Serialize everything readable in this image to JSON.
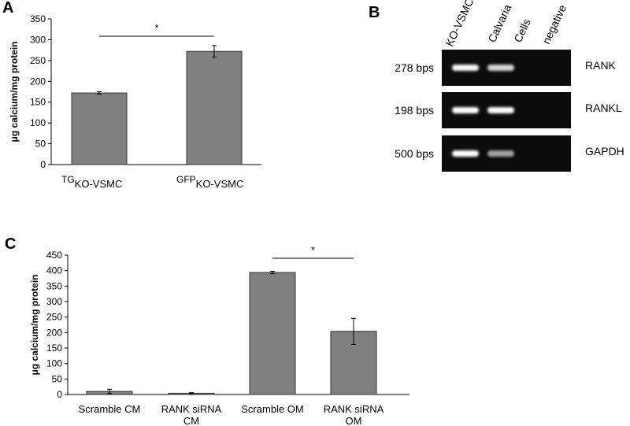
{
  "figure": {
    "panel_a_letter": "A",
    "panel_b_letter": "B",
    "panel_c_letter": "C"
  },
  "chart_data": [
    {
      "type": "bar",
      "panel": "A",
      "categories": [
        {
          "main": "TG",
          "sub": "KO-VSMC"
        },
        {
          "main": "GFP",
          "sub": "KO-VSMC"
        }
      ],
      "values": [
        172,
        272
      ],
      "errors": [
        3,
        14
      ],
      "bar_color": "#808080",
      "ylabel": "μg calcium/mg protein",
      "ylim": [
        0,
        350
      ],
      "yticks": [
        0,
        50,
        100,
        150,
        200,
        250,
        300,
        350
      ],
      "grid": false,
      "significance": {
        "between": [
          0,
          1
        ],
        "label": "*"
      }
    },
    {
      "type": "table",
      "panel": "B",
      "column_labels": [
        "KO-VSMC",
        "Calvaria Cells",
        "negative"
      ],
      "rows": [
        {
          "size": "278 bps",
          "gene": "RANK",
          "band_intensity": [
            0.95,
            0.7,
            0
          ]
        },
        {
          "size": "198 bps",
          "gene": "RANKL",
          "band_intensity": [
            1.0,
            1.0,
            0
          ]
        },
        {
          "size": "500 bps",
          "gene": "GAPDH",
          "band_intensity": [
            1.0,
            0.5,
            0
          ]
        }
      ]
    },
    {
      "type": "bar",
      "panel": "C",
      "categories": [
        {
          "line1": "Scramble CM",
          "line2": ""
        },
        {
          "line1": "RANK siRNA",
          "line2": "CM"
        },
        {
          "line1": "Scramble OM",
          "line2": ""
        },
        {
          "line1": "RANK siRNA",
          "line2": "OM"
        }
      ],
      "values": [
        10,
        4,
        394,
        204
      ],
      "errors": [
        7,
        2,
        4,
        42
      ],
      "bar_color": "#808080",
      "ylabel": "μg calcium/mg protein",
      "ylim": [
        0,
        450
      ],
      "yticks": [
        0,
        50,
        100,
        150,
        200,
        250,
        300,
        350,
        400,
        450
      ],
      "grid": false,
      "significance": {
        "between": [
          2,
          3
        ],
        "label": "*"
      }
    }
  ]
}
